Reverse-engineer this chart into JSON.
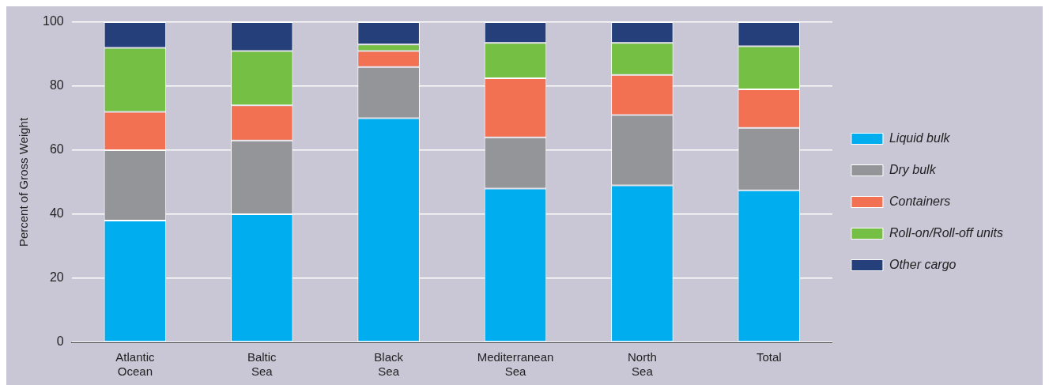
{
  "chart_data": {
    "type": "bar",
    "stacked": true,
    "ylabel": "Percent of Gross Weight",
    "categories": [
      "Atlantic Ocean",
      "Baltic Sea",
      "Black Sea",
      "Mediterranean Sea",
      "North Sea",
      "Total"
    ],
    "series": [
      {
        "name": "Liquid bulk",
        "color": "#00adee",
        "values": [
          38,
          40,
          70,
          48,
          49,
          47.5
        ]
      },
      {
        "name": "Dry bulk",
        "color": "#939598",
        "values": [
          22,
          23,
          16,
          16,
          22,
          19.5
        ]
      },
      {
        "name": "Containers",
        "color": "#f37153",
        "values": [
          12,
          11,
          5,
          18.5,
          12.5,
          12
        ]
      },
      {
        "name": "Roll-on/Roll-off units",
        "color": "#74bf44",
        "values": [
          20,
          17,
          2,
          11,
          10,
          13.5
        ]
      },
      {
        "name": "Other cargo",
        "color": "#253f7b",
        "values": [
          8,
          9,
          7,
          6.5,
          6.5,
          7.5
        ]
      }
    ],
    "ylim": [
      0,
      100
    ],
    "yticks": [
      0,
      20,
      40,
      60,
      80,
      100
    ],
    "grid": "y",
    "legend": "right"
  }
}
